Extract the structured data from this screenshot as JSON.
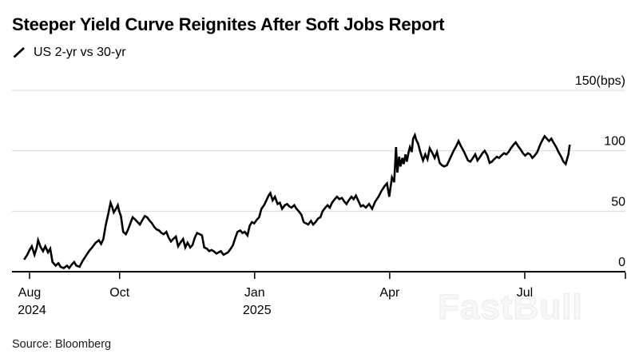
{
  "header": {
    "title": "Steeper Yield Curve Reignites After Soft Jobs Report",
    "legend": {
      "icon": "slash-line-icon",
      "series_label": "US 2-yr vs 30-yr"
    }
  },
  "footer": {
    "source": "Source: Bloomberg"
  },
  "watermark": "FastBull",
  "colors": {
    "background": "#ffffff",
    "line": "#000000",
    "grid": "#dadada",
    "axis": "#000000",
    "text": "#000000",
    "watermark_fill": "#f7f7f7",
    "watermark_stroke": "#ececec"
  },
  "chart_data": {
    "type": "line",
    "title": "Steeper Yield Curve Reignites After Soft Jobs Report",
    "series_name": "US 2-yr vs 30-yr spread",
    "unit": "bps",
    "xlabel": "",
    "ylabel": "(bps)",
    "x_unit": "months since Aug 1 2024",
    "xlim": [
      -0.3,
      13.2
    ],
    "ylim": [
      0,
      150
    ],
    "grid": "horizontal",
    "legend_position": "top-left",
    "y_ticks": [
      {
        "value": 150,
        "label": "150(bps)"
      },
      {
        "value": 100,
        "label": "100"
      },
      {
        "value": 50,
        "label": "50"
      },
      {
        "value": 0,
        "label": "0"
      }
    ],
    "x_ticks": [
      {
        "m": 0,
        "label": "Aug",
        "sublabel": "2024"
      },
      {
        "m": 2,
        "label": "Oct",
        "sublabel": ""
      },
      {
        "m": 5,
        "label": "Jan",
        "sublabel": "2025"
      },
      {
        "m": 8,
        "label": "Apr",
        "sublabel": ""
      },
      {
        "m": 11,
        "label": "Jul",
        "sublabel": ""
      }
    ],
    "points": [
      [
        -0.12,
        10
      ],
      [
        -0.05,
        14
      ],
      [
        0,
        18
      ],
      [
        0.05,
        21
      ],
      [
        0.11,
        14
      ],
      [
        0.16,
        20
      ],
      [
        0.19,
        26
      ],
      [
        0.25,
        20
      ],
      [
        0.3,
        17
      ],
      [
        0.35,
        21
      ],
      [
        0.41,
        16
      ],
      [
        0.46,
        19
      ],
      [
        0.51,
        8
      ],
      [
        0.58,
        5
      ],
      [
        0.64,
        7
      ],
      [
        0.69,
        4
      ],
      [
        0.76,
        3
      ],
      [
        0.83,
        5
      ],
      [
        0.88,
        3
      ],
      [
        0.94,
        6
      ],
      [
        0.99,
        8
      ],
      [
        1.04,
        5
      ],
      [
        1.11,
        4
      ],
      [
        1.18,
        9
      ],
      [
        1.25,
        13
      ],
      [
        1.32,
        17
      ],
      [
        1.39,
        20
      ],
      [
        1.47,
        24
      ],
      [
        1.54,
        26
      ],
      [
        1.59,
        23
      ],
      [
        1.64,
        27
      ],
      [
        1.69,
        38
      ],
      [
        1.75,
        48
      ],
      [
        1.8,
        57
      ],
      [
        1.84,
        53
      ],
      [
        1.87,
        49
      ],
      [
        1.92,
        52
      ],
      [
        1.96,
        55
      ],
      [
        1.99,
        50
      ],
      [
        2.03,
        46
      ],
      [
        2.08,
        33
      ],
      [
        2.14,
        31
      ],
      [
        2.19,
        35
      ],
      [
        2.24,
        40
      ],
      [
        2.29,
        45
      ],
      [
        2.35,
        43
      ],
      [
        2.4,
        41
      ],
      [
        2.45,
        39
      ],
      [
        2.51,
        43
      ],
      [
        2.56,
        46
      ],
      [
        2.61,
        45
      ],
      [
        2.67,
        42
      ],
      [
        2.72,
        40
      ],
      [
        2.77,
        37
      ],
      [
        2.82,
        35
      ],
      [
        2.88,
        34
      ],
      [
        2.93,
        32
      ],
      [
        2.98,
        31
      ],
      [
        3.04,
        33
      ],
      [
        3.09,
        28
      ],
      [
        3.14,
        25
      ],
      [
        3.19,
        27
      ],
      [
        3.25,
        29
      ],
      [
        3.3,
        21
      ],
      [
        3.35,
        24
      ],
      [
        3.41,
        27
      ],
      [
        3.46,
        20
      ],
      [
        3.51,
        24
      ],
      [
        3.57,
        20
      ],
      [
        3.62,
        22
      ],
      [
        3.67,
        28
      ],
      [
        3.72,
        32
      ],
      [
        3.78,
        31
      ],
      [
        3.83,
        30
      ],
      [
        3.88,
        20
      ],
      [
        3.94,
        19
      ],
      [
        3.99,
        17
      ],
      [
        4.04,
        18
      ],
      [
        4.09,
        17
      ],
      [
        4.15,
        15
      ],
      [
        4.2,
        16
      ],
      [
        4.25,
        17
      ],
      [
        4.31,
        14
      ],
      [
        4.36,
        15
      ],
      [
        4.41,
        16
      ],
      [
        4.47,
        19
      ],
      [
        4.52,
        22
      ],
      [
        4.57,
        28
      ],
      [
        4.62,
        33
      ],
      [
        4.68,
        34
      ],
      [
        4.73,
        32
      ],
      [
        4.78,
        33
      ],
      [
        4.84,
        30
      ],
      [
        4.89,
        38
      ],
      [
        4.94,
        41
      ],
      [
        4.99,
        40
      ],
      [
        5.05,
        43
      ],
      [
        5.1,
        45
      ],
      [
        5.15,
        52
      ],
      [
        5.21,
        55
      ],
      [
        5.26,
        59
      ],
      [
        5.31,
        63
      ],
      [
        5.35,
        65
      ],
      [
        5.4,
        59
      ],
      [
        5.45,
        62
      ],
      [
        5.51,
        56
      ],
      [
        5.56,
        57
      ],
      [
        5.61,
        52
      ],
      [
        5.67,
        55
      ],
      [
        5.72,
        56
      ],
      [
        5.77,
        54
      ],
      [
        5.82,
        53
      ],
      [
        5.88,
        55
      ],
      [
        5.93,
        52
      ],
      [
        5.98,
        50
      ],
      [
        6.04,
        47
      ],
      [
        6.09,
        41
      ],
      [
        6.14,
        40
      ],
      [
        6.19,
        39
      ],
      [
        6.25,
        42
      ],
      [
        6.3,
        39
      ],
      [
        6.35,
        41
      ],
      [
        6.41,
        44
      ],
      [
        6.46,
        45
      ],
      [
        6.51,
        50
      ],
      [
        6.57,
        53
      ],
      [
        6.62,
        55
      ],
      [
        6.67,
        53
      ],
      [
        6.72,
        57
      ],
      [
        6.78,
        60
      ],
      [
        6.83,
        62
      ],
      [
        6.88,
        60
      ],
      [
        6.94,
        61
      ],
      [
        6.99,
        58
      ],
      [
        7.04,
        56
      ],
      [
        7.09,
        59
      ],
      [
        7.15,
        62
      ],
      [
        7.2,
        60
      ],
      [
        7.25,
        63
      ],
      [
        7.31,
        58
      ],
      [
        7.36,
        54
      ],
      [
        7.41,
        55
      ],
      [
        7.47,
        53
      ],
      [
        7.54,
        56
      ],
      [
        7.61,
        52
      ],
      [
        7.68,
        58
      ],
      [
        7.75,
        62
      ],
      [
        7.82,
        67
      ],
      [
        7.89,
        71
      ],
      [
        7.94,
        73
      ],
      [
        7.99,
        62
      ],
      [
        8.05,
        78
      ],
      [
        8.1,
        74
      ],
      [
        8.14,
        103
      ],
      [
        8.17,
        82
      ],
      [
        8.21,
        95
      ],
      [
        8.24,
        87
      ],
      [
        8.28,
        94
      ],
      [
        8.31,
        89
      ],
      [
        8.35,
        97
      ],
      [
        8.38,
        91
      ],
      [
        8.42,
        99
      ],
      [
        8.45,
        103
      ],
      [
        8.49,
        99
      ],
      [
        8.52,
        110
      ],
      [
        8.56,
        113
      ],
      [
        8.59,
        109
      ],
      [
        8.63,
        106
      ],
      [
        8.68,
        99
      ],
      [
        8.74,
        92
      ],
      [
        8.79,
        97
      ],
      [
        8.84,
        93
      ],
      [
        8.89,
        102
      ],
      [
        8.95,
        98
      ],
      [
        9.0,
        94
      ],
      [
        9.05,
        99
      ],
      [
        9.11,
        90
      ],
      [
        9.16,
        88
      ],
      [
        9.21,
        87
      ],
      [
        9.27,
        88
      ],
      [
        9.32,
        92
      ],
      [
        9.37,
        96
      ],
      [
        9.42,
        100
      ],
      [
        9.48,
        104
      ],
      [
        9.53,
        108
      ],
      [
        9.58,
        104
      ],
      [
        9.64,
        100
      ],
      [
        9.69,
        96
      ],
      [
        9.74,
        92
      ],
      [
        9.79,
        91
      ],
      [
        9.85,
        94
      ],
      [
        9.9,
        97
      ],
      [
        9.95,
        92
      ],
      [
        10.01,
        95
      ],
      [
        10.06,
        98
      ],
      [
        10.11,
        100
      ],
      [
        10.17,
        96
      ],
      [
        10.22,
        90
      ],
      [
        10.27,
        91
      ],
      [
        10.32,
        93
      ],
      [
        10.38,
        95
      ],
      [
        10.43,
        94
      ],
      [
        10.48,
        96
      ],
      [
        10.54,
        98
      ],
      [
        10.59,
        97
      ],
      [
        10.64,
        99
      ],
      [
        10.69,
        102
      ],
      [
        10.75,
        105
      ],
      [
        10.8,
        107
      ],
      [
        10.85,
        104
      ],
      [
        10.91,
        101
      ],
      [
        10.96,
        98
      ],
      [
        11.01,
        96
      ],
      [
        11.07,
        98
      ],
      [
        11.12,
        97
      ],
      [
        11.17,
        94
      ],
      [
        11.22,
        96
      ],
      [
        11.28,
        99
      ],
      [
        11.33,
        104
      ],
      [
        11.38,
        108
      ],
      [
        11.44,
        112
      ],
      [
        11.49,
        110
      ],
      [
        11.54,
        108
      ],
      [
        11.59,
        110
      ],
      [
        11.65,
        106
      ],
      [
        11.7,
        103
      ],
      [
        11.75,
        99
      ],
      [
        11.81,
        95
      ],
      [
        11.86,
        91
      ],
      [
        11.91,
        89
      ],
      [
        11.97,
        97
      ],
      [
        12.0,
        105
      ]
    ]
  }
}
